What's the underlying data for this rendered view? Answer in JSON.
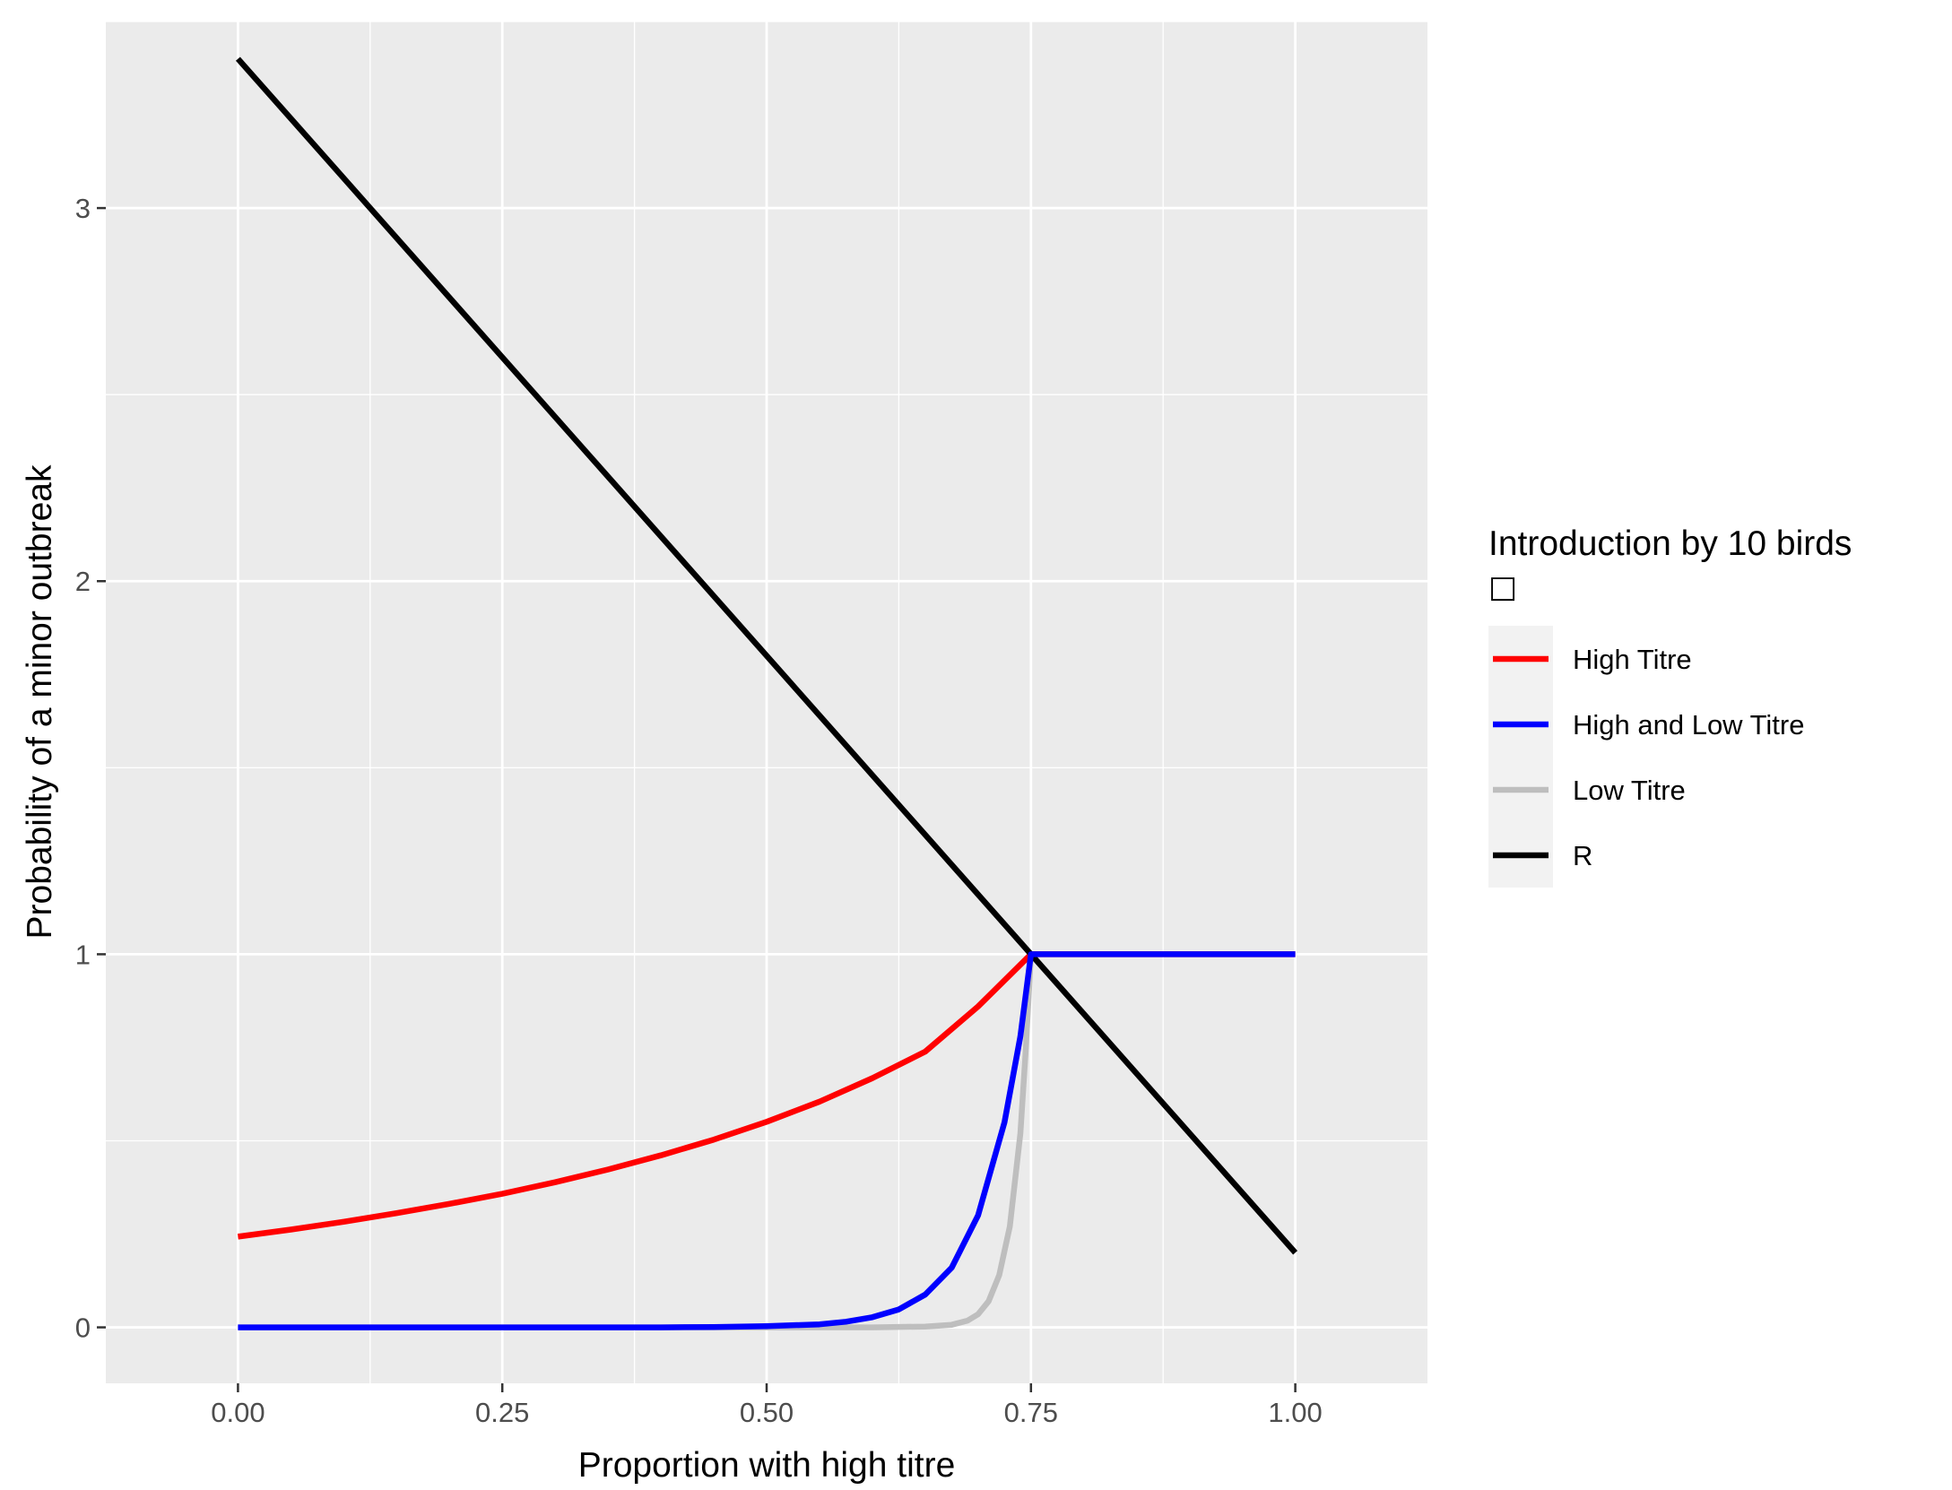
{
  "chart_data": {
    "type": "line",
    "title": "",
    "xlabel": "Proportion with high titre",
    "ylabel": "Probability of a minor outbreak",
    "xlim": [
      -0.125,
      1.125
    ],
    "ylim": [
      -0.15,
      3.5
    ],
    "x_ticks": [
      0,
      0.25,
      0.5,
      0.75,
      1
    ],
    "x_tick_labels": [
      "0.00",
      "0.25",
      "0.50",
      "0.75",
      "1.00"
    ],
    "y_ticks": [
      0,
      1,
      2,
      3
    ],
    "y_tick_labels": [
      "0",
      "1",
      "2",
      "3"
    ],
    "x_minor": [
      0.125,
      0.375,
      0.625,
      0.875
    ],
    "y_minor": [
      0.5,
      1.5,
      2.5,
      3.5
    ],
    "grid": true,
    "background": "#ebebeb",
    "legend": {
      "title": "Introduction by 10 birds",
      "subtitle_symbol": "□",
      "position": "right"
    },
    "series": [
      {
        "name": "High Titre",
        "color": "#ff0000",
        "x": [
          0,
          0.05,
          0.1,
          0.15,
          0.2,
          0.25,
          0.3,
          0.35,
          0.4,
          0.45,
          0.5,
          0.55,
          0.6,
          0.65,
          0.7,
          0.75,
          0.8,
          0.85,
          0.9,
          0.95,
          1.0
        ],
        "y": [
          0.243,
          0.262,
          0.283,
          0.306,
          0.331,
          0.358,
          0.389,
          0.423,
          0.461,
          0.503,
          0.551,
          0.605,
          0.668,
          0.739,
          0.86,
          1.0,
          1.0,
          1.0,
          1.0,
          1.0,
          1.0
        ]
      },
      {
        "name": "High and Low Titre",
        "color": "#0000ff",
        "x": [
          0,
          0.1,
          0.2,
          0.3,
          0.4,
          0.45,
          0.5,
          0.55,
          0.575,
          0.6,
          0.625,
          0.65,
          0.675,
          0.7,
          0.725,
          0.74,
          0.75,
          0.8,
          0.9,
          1.0
        ],
        "y": [
          0,
          0,
          0,
          0,
          0,
          0.001,
          0.003,
          0.008,
          0.015,
          0.027,
          0.048,
          0.088,
          0.16,
          0.3,
          0.55,
          0.78,
          1.0,
          1.0,
          1.0,
          1.0
        ]
      },
      {
        "name": "Low Titre",
        "color": "#bebebe",
        "x": [
          0,
          0.2,
          0.4,
          0.6,
          0.65,
          0.675,
          0.69,
          0.7,
          0.71,
          0.72,
          0.73,
          0.74,
          0.745,
          0.75
        ],
        "y": [
          0,
          0,
          0,
          0,
          0.002,
          0.007,
          0.018,
          0.035,
          0.07,
          0.14,
          0.27,
          0.52,
          0.74,
          1.0
        ]
      },
      {
        "name": "R",
        "color": "#000000",
        "x": [
          0,
          1
        ],
        "y": [
          3.4,
          0.2
        ]
      }
    ]
  }
}
